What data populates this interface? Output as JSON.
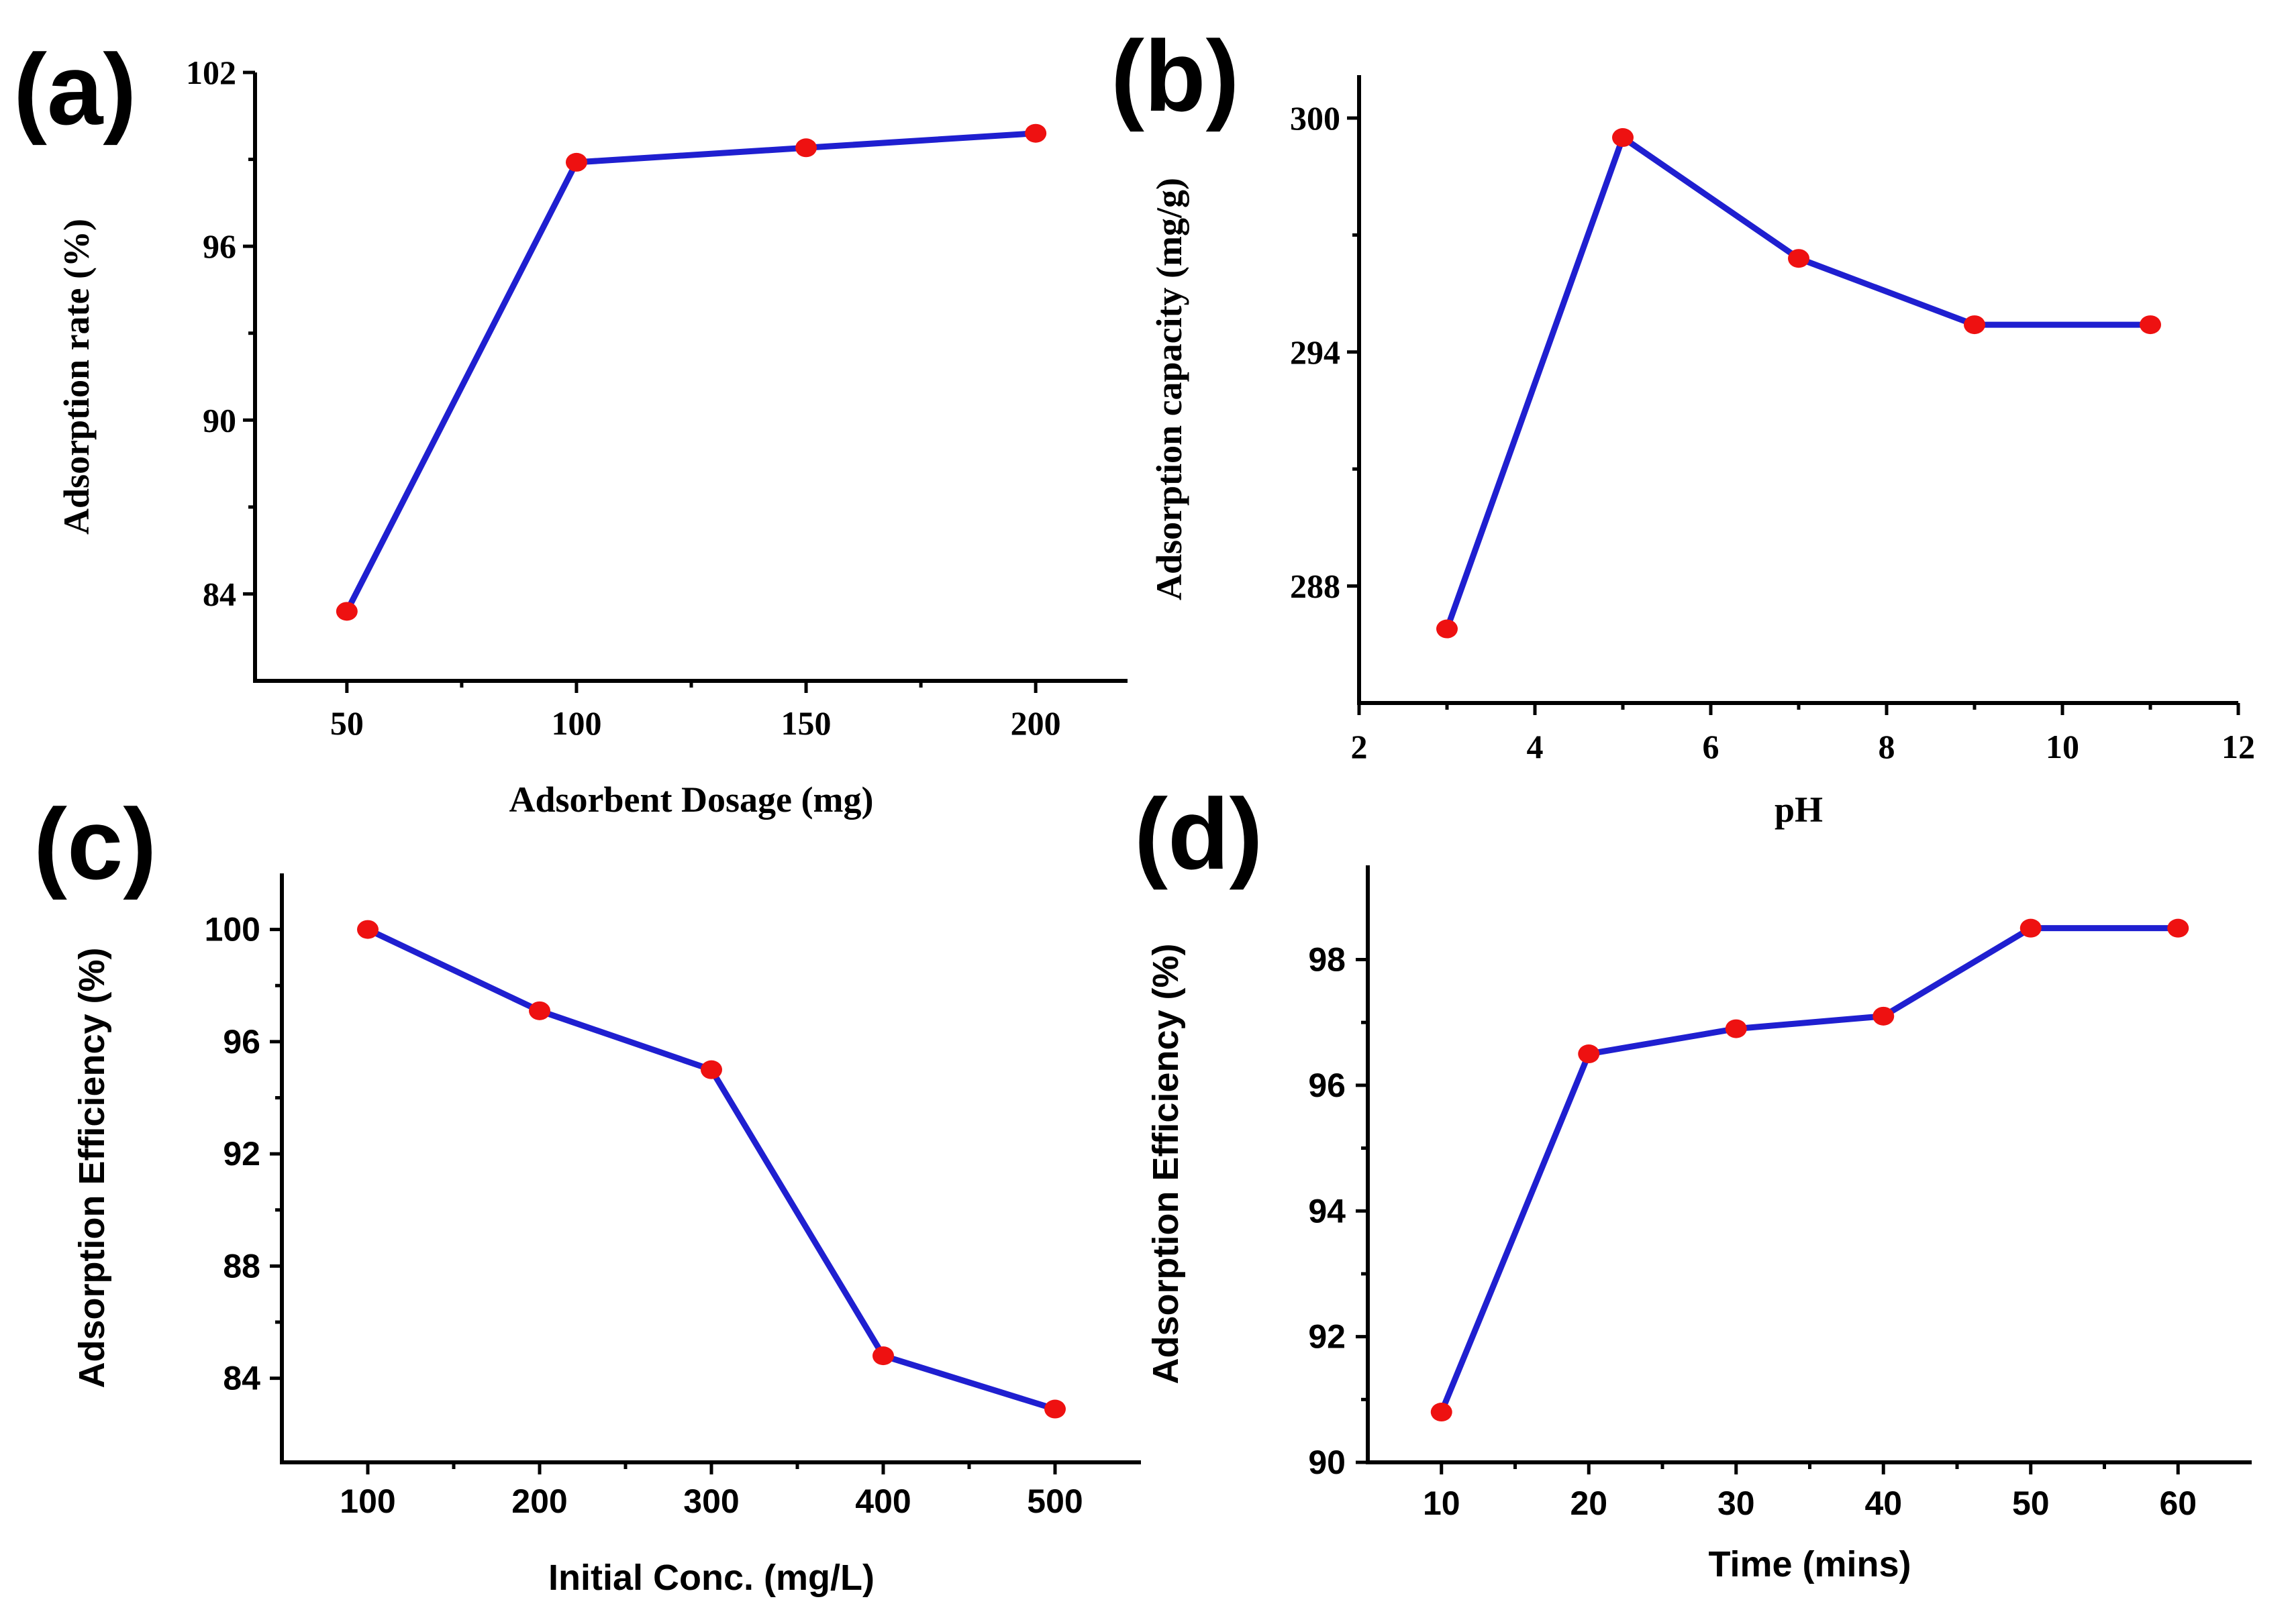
{
  "colors": {
    "line": "#1f1fd0",
    "marker": "#ee1111",
    "axis": "#000000"
  },
  "chart_data": [
    {
      "id": "a",
      "panel_label": "(a)",
      "type": "line",
      "title": "",
      "xlabel": "Adsorbent Dosage (mg)",
      "ylabel": "Adsorption rate (%)",
      "x": [
        50,
        100,
        150,
        200
      ],
      "values": [
        83.4,
        98.9,
        99.4,
        99.9
      ],
      "xlim": [
        30,
        220
      ],
      "ylim": [
        81,
        102
      ],
      "xticks": [
        50,
        100,
        150,
        200
      ],
      "yticks": [
        84,
        90,
        96,
        102
      ],
      "grid": false,
      "legend": "none"
    },
    {
      "id": "b",
      "panel_label": "(b)",
      "type": "line",
      "title": "",
      "xlabel": "pH",
      "ylabel": "Adsorption capacity (mg/g)",
      "x": [
        3,
        5,
        7,
        9,
        11
      ],
      "values": [
        286.9,
        299.5,
        296.4,
        294.7,
        294.7
      ],
      "xlim": [
        2,
        12
      ],
      "ylim": [
        285,
        301.1
      ],
      "xticks": [
        2,
        4,
        6,
        8,
        10,
        12
      ],
      "yticks": [
        288,
        294,
        300
      ],
      "grid": false,
      "legend": "none"
    },
    {
      "id": "c",
      "panel_label": "(c)",
      "type": "line",
      "title": "",
      "xlabel": "Initial Conc. (mg/L)",
      "ylabel": "Adsorption Efficiency  (%)",
      "x": [
        100,
        200,
        300,
        400,
        500
      ],
      "values": [
        100.0,
        97.1,
        95.0,
        84.8,
        82.9
      ],
      "xlim": [
        50,
        550
      ],
      "ylim": [
        81,
        102
      ],
      "xticks": [
        100,
        200,
        300,
        400,
        500
      ],
      "yticks": [
        84,
        88,
        92,
        96,
        100
      ],
      "grid": false,
      "legend": "none"
    },
    {
      "id": "d",
      "panel_label": "(d)",
      "type": "line",
      "title": "",
      "xlabel": "Time (mins)",
      "ylabel": "Adsorption Efficiency (%)",
      "x": [
        10,
        20,
        30,
        40,
        50,
        60
      ],
      "values": [
        90.8,
        96.5,
        96.9,
        97.1,
        98.5,
        98.5
      ],
      "xlim": [
        5,
        65
      ],
      "ylim": [
        90,
        99.5
      ],
      "xticks": [
        10,
        20,
        30,
        40,
        50,
        60
      ],
      "yticks": [
        90,
        92,
        94,
        96,
        98
      ],
      "grid": false,
      "legend": "none"
    }
  ]
}
